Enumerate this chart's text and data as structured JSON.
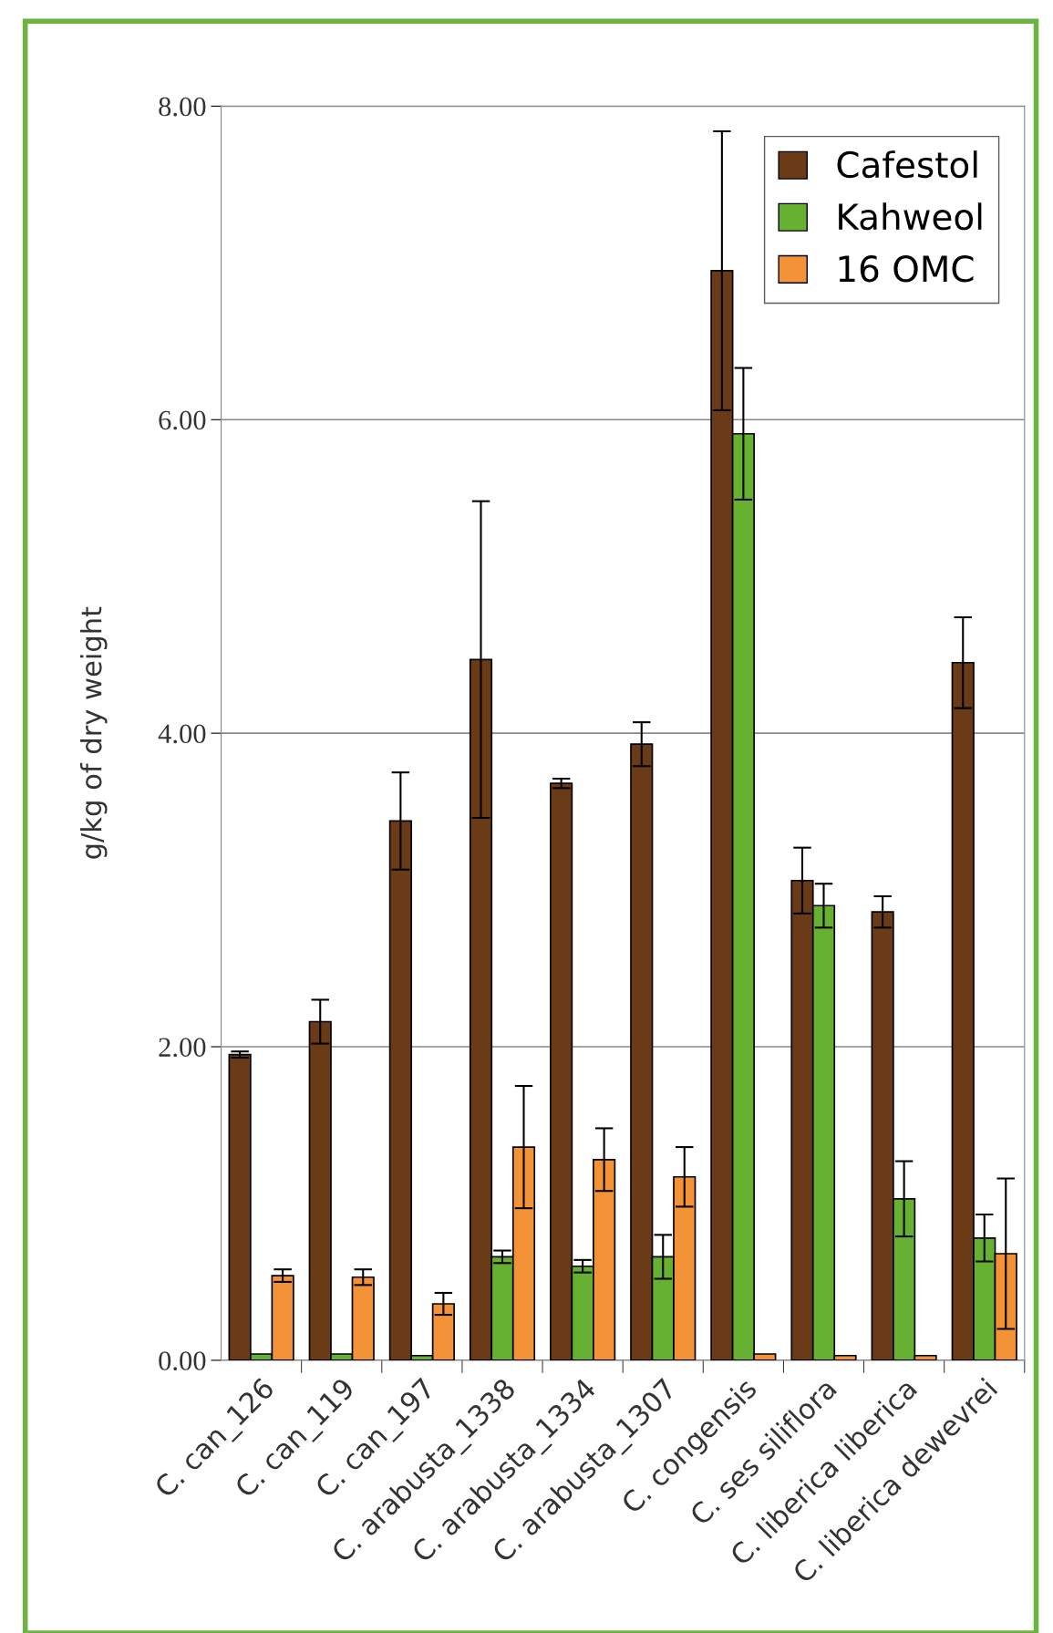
{
  "chart_data": {
    "type": "bar",
    "ylabel": "g/kg of dry weight",
    "categories": [
      "C. can_126",
      "C. can_119",
      "C. can_197",
      "C. arabusta_1338",
      "C. arabusta_1334",
      "C. arabusta_1307",
      "C. congensis",
      "C. ses siliflora",
      "C. liberica liberica",
      "C. liberica dewevrei"
    ],
    "series": [
      {
        "name": "Cafestol",
        "color": "#6b3a17",
        "values": [
          1.95,
          2.16,
          3.44,
          4.47,
          3.68,
          3.93,
          6.95,
          3.06,
          2.86,
          4.45
        ],
        "errors": [
          0.02,
          0.14,
          0.31,
          1.01,
          0.03,
          0.14,
          0.89,
          0.21,
          0.1,
          0.29
        ]
      },
      {
        "name": "Kahweol",
        "color": "#66b032",
        "values": [
          0.04,
          0.04,
          0.03,
          0.66,
          0.6,
          0.66,
          5.91,
          2.9,
          1.03,
          0.78
        ],
        "errors": [
          null,
          null,
          null,
          0.04,
          0.04,
          0.14,
          0.42,
          0.14,
          0.24,
          0.15
        ]
      },
      {
        "name": "16 OMC",
        "color": "#f39237",
        "values": [
          0.54,
          0.53,
          0.36,
          1.36,
          1.28,
          1.17,
          0.04,
          0.03,
          0.03,
          0.68
        ],
        "errors": [
          0.04,
          0.05,
          0.07,
          0.39,
          0.2,
          0.19,
          null,
          null,
          null,
          0.48
        ]
      }
    ],
    "ylim": [
      0,
      8
    ],
    "yticks": [
      {
        "value": 0,
        "label": "0.00"
      },
      {
        "value": 2,
        "label": "2.00"
      },
      {
        "value": 4,
        "label": "4.00"
      },
      {
        "value": 6,
        "label": "6.00"
      },
      {
        "value": 8,
        "label": "8.00"
      }
    ],
    "grid": "y",
    "legend": "top right"
  }
}
